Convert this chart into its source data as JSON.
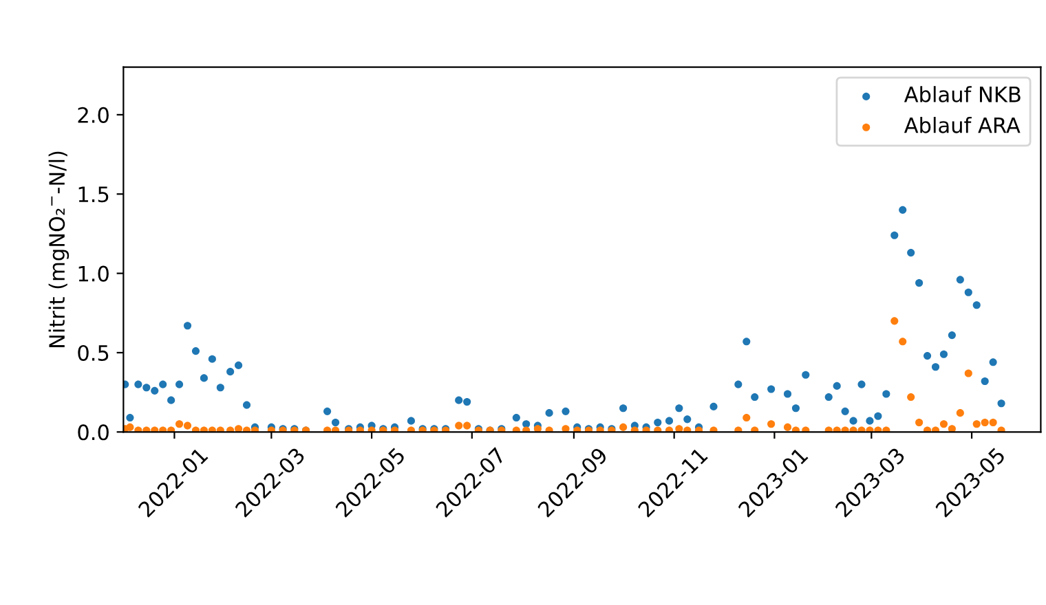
{
  "chart_data": {
    "type": "scatter",
    "ylabel": "Nitrit (mgNO₂$^{−}$-N/l)",
    "x": [
      "2021-12-02",
      "2021-12-05",
      "2021-12-10",
      "2021-12-15",
      "2021-12-20",
      "2021-12-25",
      "2021-12-30",
      "2022-01-04",
      "2022-01-09",
      "2022-01-14",
      "2022-01-19",
      "2022-01-24",
      "2022-01-29",
      "2022-02-04",
      "2022-02-09",
      "2022-02-14",
      "2022-02-19",
      "2022-03-01",
      "2022-03-08",
      "2022-03-15",
      "2022-03-22",
      "2022-04-04",
      "2022-04-09",
      "2022-04-17",
      "2022-04-24",
      "2022-05-01",
      "2022-05-08",
      "2022-05-15",
      "2022-05-25",
      "2022-06-01",
      "2022-06-08",
      "2022-06-15",
      "2022-06-23",
      "2022-06-28",
      "2022-07-05",
      "2022-07-12",
      "2022-07-19",
      "2022-07-28",
      "2022-08-03",
      "2022-08-10",
      "2022-08-17",
      "2022-08-27",
      "2022-09-03",
      "2022-09-10",
      "2022-09-17",
      "2022-09-24",
      "2022-10-01",
      "2022-10-08",
      "2022-10-15",
      "2022-10-22",
      "2022-10-29",
      "2022-11-04",
      "2022-11-09",
      "2022-11-16",
      "2022-11-25",
      "2022-12-10",
      "2022-12-15",
      "2022-12-20",
      "2022-12-30",
      "2023-01-09",
      "2023-01-14",
      "2023-01-20",
      "2023-02-03",
      "2023-02-08",
      "2023-02-13",
      "2023-02-18",
      "2023-02-23",
      "2023-02-28",
      "2023-03-05",
      "2023-03-10",
      "2023-03-15",
      "2023-03-20",
      "2023-03-25",
      "2023-03-30",
      "2023-04-04",
      "2023-04-09",
      "2023-04-14",
      "2023-04-19",
      "2023-04-24",
      "2023-04-29",
      "2023-05-04",
      "2023-05-09",
      "2023-05-14",
      "2023-05-19"
    ],
    "series": [
      {
        "name": "Ablauf NKB",
        "color": "#1f77b4",
        "values": [
          0.3,
          0.09,
          0.3,
          0.28,
          0.26,
          0.3,
          0.2,
          0.3,
          0.67,
          0.51,
          0.34,
          0.46,
          0.28,
          0.38,
          0.42,
          0.17,
          0.03,
          0.03,
          0.02,
          0.02,
          0.01,
          0.13,
          0.06,
          0.02,
          0.03,
          0.04,
          0.02,
          0.03,
          0.07,
          0.02,
          0.02,
          0.02,
          0.2,
          0.19,
          0.02,
          0.01,
          0.02,
          0.09,
          0.05,
          0.04,
          0.12,
          0.13,
          0.03,
          0.02,
          0.03,
          0.02,
          0.15,
          0.04,
          0.03,
          0.06,
          0.07,
          0.15,
          0.08,
          0.03,
          0.16,
          0.3,
          0.57,
          0.22,
          0.27,
          0.24,
          0.15,
          0.36,
          0.22,
          0.29,
          0.13,
          0.07,
          0.3,
          0.07,
          0.1,
          0.24,
          1.24,
          1.4,
          1.13,
          0.94,
          0.48,
          0.41,
          0.49,
          0.61,
          0.96,
          0.88,
          0.8,
          0.32,
          0.44,
          0.18
        ]
      },
      {
        "name": "Ablauf ARA",
        "color": "#ff7f0e",
        "values": [
          0.02,
          0.03,
          0.01,
          0.01,
          0.01,
          0.01,
          0.01,
          0.05,
          0.04,
          0.01,
          0.01,
          0.01,
          0.01,
          0.01,
          0.02,
          0.01,
          0.01,
          0.01,
          0.01,
          0.01,
          0.01,
          0.01,
          0.01,
          0.01,
          0.01,
          0.01,
          0.01,
          0.01,
          0.01,
          0.01,
          0.01,
          0.01,
          0.04,
          0.04,
          0.01,
          0.01,
          0.01,
          0.01,
          0.01,
          0.02,
          0.01,
          0.02,
          0.01,
          0.01,
          0.01,
          0.01,
          0.03,
          0.01,
          0.01,
          0.01,
          0.01,
          0.02,
          0.01,
          0.01,
          0.01,
          0.01,
          0.09,
          0.01,
          0.05,
          0.03,
          0.01,
          0.01,
          0.01,
          0.01,
          0.01,
          0.01,
          0.01,
          0.01,
          0.01,
          0.01,
          0.7,
          0.57,
          0.22,
          0.06,
          0.01,
          0.01,
          0.05,
          0.02,
          0.12,
          0.37,
          0.05,
          0.06,
          0.06,
          0.01
        ]
      }
    ],
    "xlim": [
      "2021-12-01",
      "2023-06-12"
    ],
    "xticks": [
      "2022-01",
      "2022-03",
      "2022-05",
      "2022-07",
      "2022-09",
      "2022-11",
      "2023-01",
      "2023-03",
      "2023-05"
    ],
    "ylim": [
      0,
      2.3
    ],
    "yticks": [
      {
        "value": 0,
        "label": "0.0"
      },
      0.5,
      {
        "value": 1,
        "label": "1.0"
      },
      1.5,
      {
        "value": 2,
        "label": "2.0"
      }
    ],
    "marker": "circle",
    "legend": "top right",
    "grid": false
  }
}
